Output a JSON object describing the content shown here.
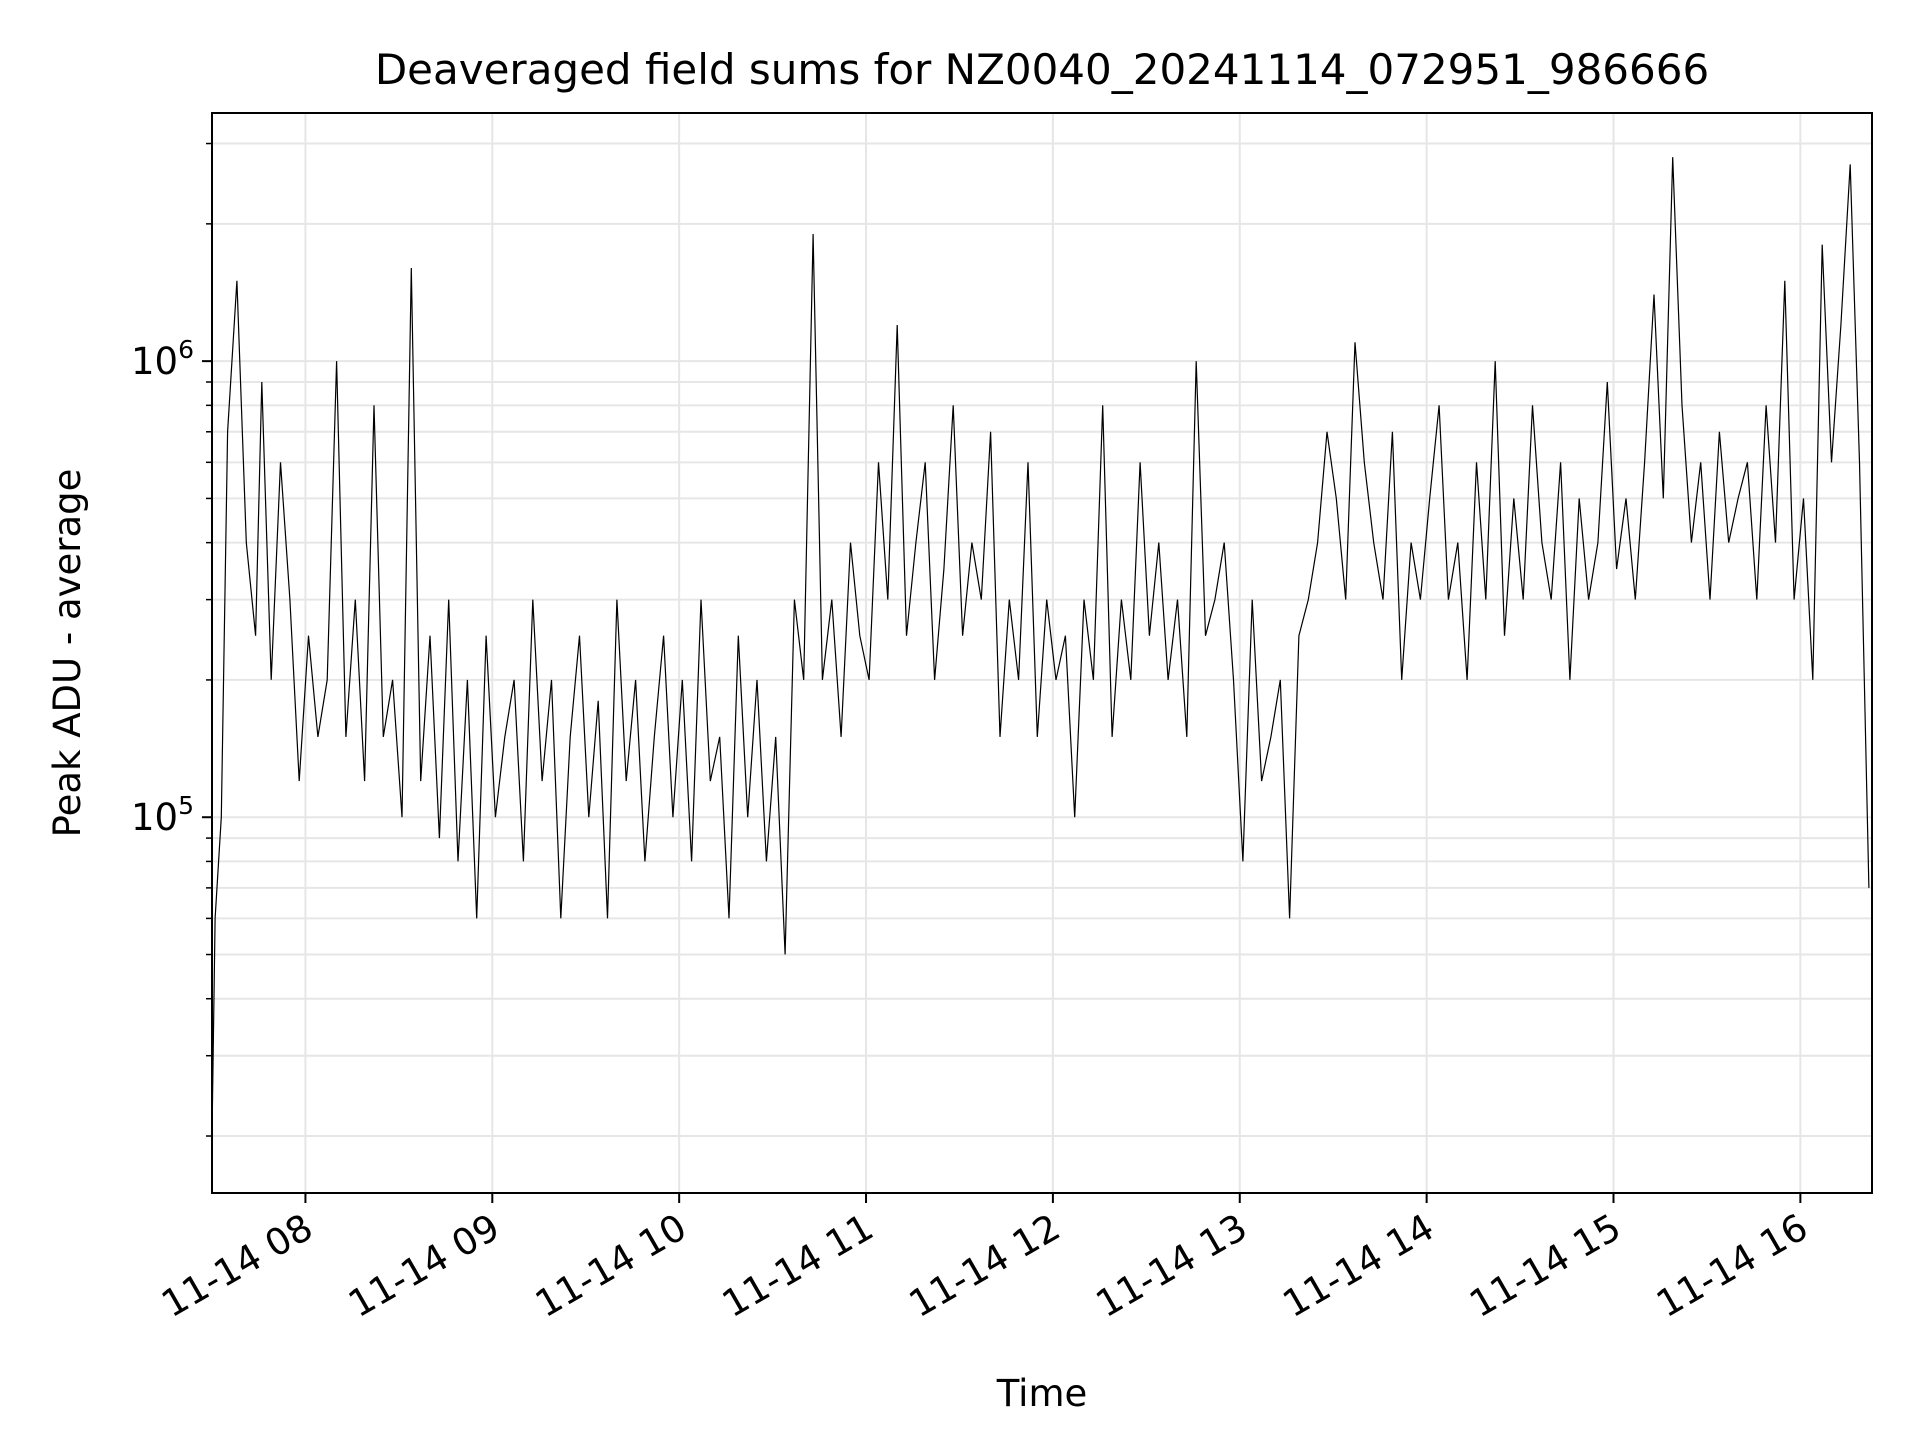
{
  "chart_data": {
    "type": "line",
    "title": "Deaveraged field sums for NZ0040_20241114_072951_986666",
    "xlabel": "Time",
    "ylabel": "Peak ADU - average",
    "yscale": "log",
    "xlim": [
      "2024-11-14 07:30",
      "2024-11-14 16:23"
    ],
    "ylim": [
      15000,
      3500000
    ],
    "x_ticks": [
      "11-14 08",
      "11-14 09",
      "11-14 10",
      "11-14 11",
      "11-14 12",
      "11-14 13",
      "11-14 14",
      "11-14 15",
      "11-14 16"
    ],
    "y_ticks": [
      {
        "label_base": "10",
        "label_exp": "5",
        "value": 100000
      },
      {
        "label_base": "10",
        "label_exp": "6",
        "value": 1000000
      }
    ],
    "grid": true,
    "line_color": "#000000",
    "series": [
      {
        "x": [
          "07:30",
          "07:31",
          "07:33",
          "07:35",
          "07:38",
          "07:41",
          "07:44",
          "07:46",
          "07:49",
          "07:52",
          "07:55",
          "07:58",
          "08:01",
          "08:04",
          "08:07",
          "08:10",
          "08:13",
          "08:16",
          "08:19",
          "08:22",
          "08:25",
          "08:28",
          "08:31",
          "08:34",
          "08:37",
          "08:40",
          "08:43",
          "08:46",
          "08:49",
          "08:52",
          "08:55",
          "08:58",
          "09:01",
          "09:04",
          "09:07",
          "09:10",
          "09:13",
          "09:16",
          "09:19",
          "09:22",
          "09:25",
          "09:28",
          "09:31",
          "09:34",
          "09:37",
          "09:40",
          "09:43",
          "09:46",
          "09:49",
          "09:52",
          "09:55",
          "09:58",
          "10:01",
          "10:04",
          "10:07",
          "10:10",
          "10:13",
          "10:16",
          "10:19",
          "10:22",
          "10:25",
          "10:28",
          "10:31",
          "10:34",
          "10:37",
          "10:40",
          "10:43",
          "10:46",
          "10:49",
          "10:52",
          "10:55",
          "10:58",
          "11:01",
          "11:04",
          "11:07",
          "11:10",
          "11:13",
          "11:16",
          "11:19",
          "11:22",
          "11:25",
          "11:28",
          "11:31",
          "11:34",
          "11:37",
          "11:40",
          "11:43",
          "11:46",
          "11:49",
          "11:52",
          "11:55",
          "11:58",
          "12:01",
          "12:04",
          "12:07",
          "12:10",
          "12:13",
          "12:16",
          "12:19",
          "12:22",
          "12:25",
          "12:28",
          "12:31",
          "12:34",
          "12:37",
          "12:40",
          "12:43",
          "12:46",
          "12:49",
          "12:52",
          "12:55",
          "12:58",
          "13:01",
          "13:04",
          "13:07",
          "13:10",
          "13:13",
          "13:16",
          "13:19",
          "13:22",
          "13:25",
          "13:28",
          "13:31",
          "13:34",
          "13:37",
          "13:40",
          "13:43",
          "13:46",
          "13:49",
          "13:52",
          "13:55",
          "13:58",
          "14:01",
          "14:04",
          "14:07",
          "14:10",
          "14:13",
          "14:16",
          "14:19",
          "14:22",
          "14:25",
          "14:28",
          "14:31",
          "14:34",
          "14:37",
          "14:40",
          "14:43",
          "14:46",
          "14:49",
          "14:52",
          "14:55",
          "14:58",
          "15:01",
          "15:04",
          "15:07",
          "15:10",
          "15:13",
          "15:16",
          "15:19",
          "15:22",
          "15:25",
          "15:28",
          "15:31",
          "15:34",
          "15:37",
          "15:40",
          "15:43",
          "15:46",
          "15:49",
          "15:52",
          "15:55",
          "15:58",
          "16:01",
          "16:04",
          "16:07",
          "16:10",
          "16:13",
          "16:16",
          "16:19",
          "16:22"
        ],
        "y": [
          20000,
          60000,
          100000,
          700000,
          1500000,
          400000,
          250000,
          900000,
          200000,
          600000,
          300000,
          120000,
          250000,
          150000,
          200000,
          1000000,
          150000,
          300000,
          120000,
          800000,
          150000,
          200000,
          100000,
          1600000,
          120000,
          250000,
          90000,
          300000,
          80000,
          200000,
          60000,
          250000,
          100000,
          150000,
          200000,
          80000,
          300000,
          120000,
          200000,
          60000,
          150000,
          250000,
          100000,
          180000,
          60000,
          300000,
          120000,
          200000,
          80000,
          150000,
          250000,
          100000,
          200000,
          80000,
          300000,
          120000,
          150000,
          60000,
          250000,
          100000,
          200000,
          80000,
          150000,
          50000,
          300000,
          200000,
          1900000,
          200000,
          300000,
          150000,
          400000,
          250000,
          200000,
          600000,
          300000,
          1200000,
          250000,
          400000,
          600000,
          200000,
          350000,
          800000,
          250000,
          400000,
          300000,
          700000,
          150000,
          300000,
          200000,
          600000,
          150000,
          300000,
          200000,
          250000,
          100000,
          300000,
          200000,
          800000,
          150000,
          300000,
          200000,
          600000,
          250000,
          400000,
          200000,
          300000,
          150000,
          1000000,
          250000,
          300000,
          400000,
          200000,
          80000,
          300000,
          120000,
          150000,
          200000,
          60000,
          250000,
          300000,
          400000,
          700000,
          500000,
          300000,
          1100000,
          600000,
          400000,
          300000,
          700000,
          200000,
          400000,
          300000,
          500000,
          800000,
          300000,
          400000,
          200000,
          600000,
          300000,
          1000000,
          250000,
          500000,
          300000,
          800000,
          400000,
          300000,
          600000,
          200000,
          500000,
          300000,
          400000,
          900000,
          350000,
          500000,
          300000,
          600000,
          1400000,
          500000,
          2800000,
          800000,
          400000,
          600000,
          300000,
          700000,
          400000,
          500000,
          600000,
          300000,
          800000,
          400000,
          1500000,
          300000,
          500000,
          200000,
          1800000,
          600000,
          1200000,
          2700000,
          600000,
          70000
        ]
      }
    ]
  }
}
